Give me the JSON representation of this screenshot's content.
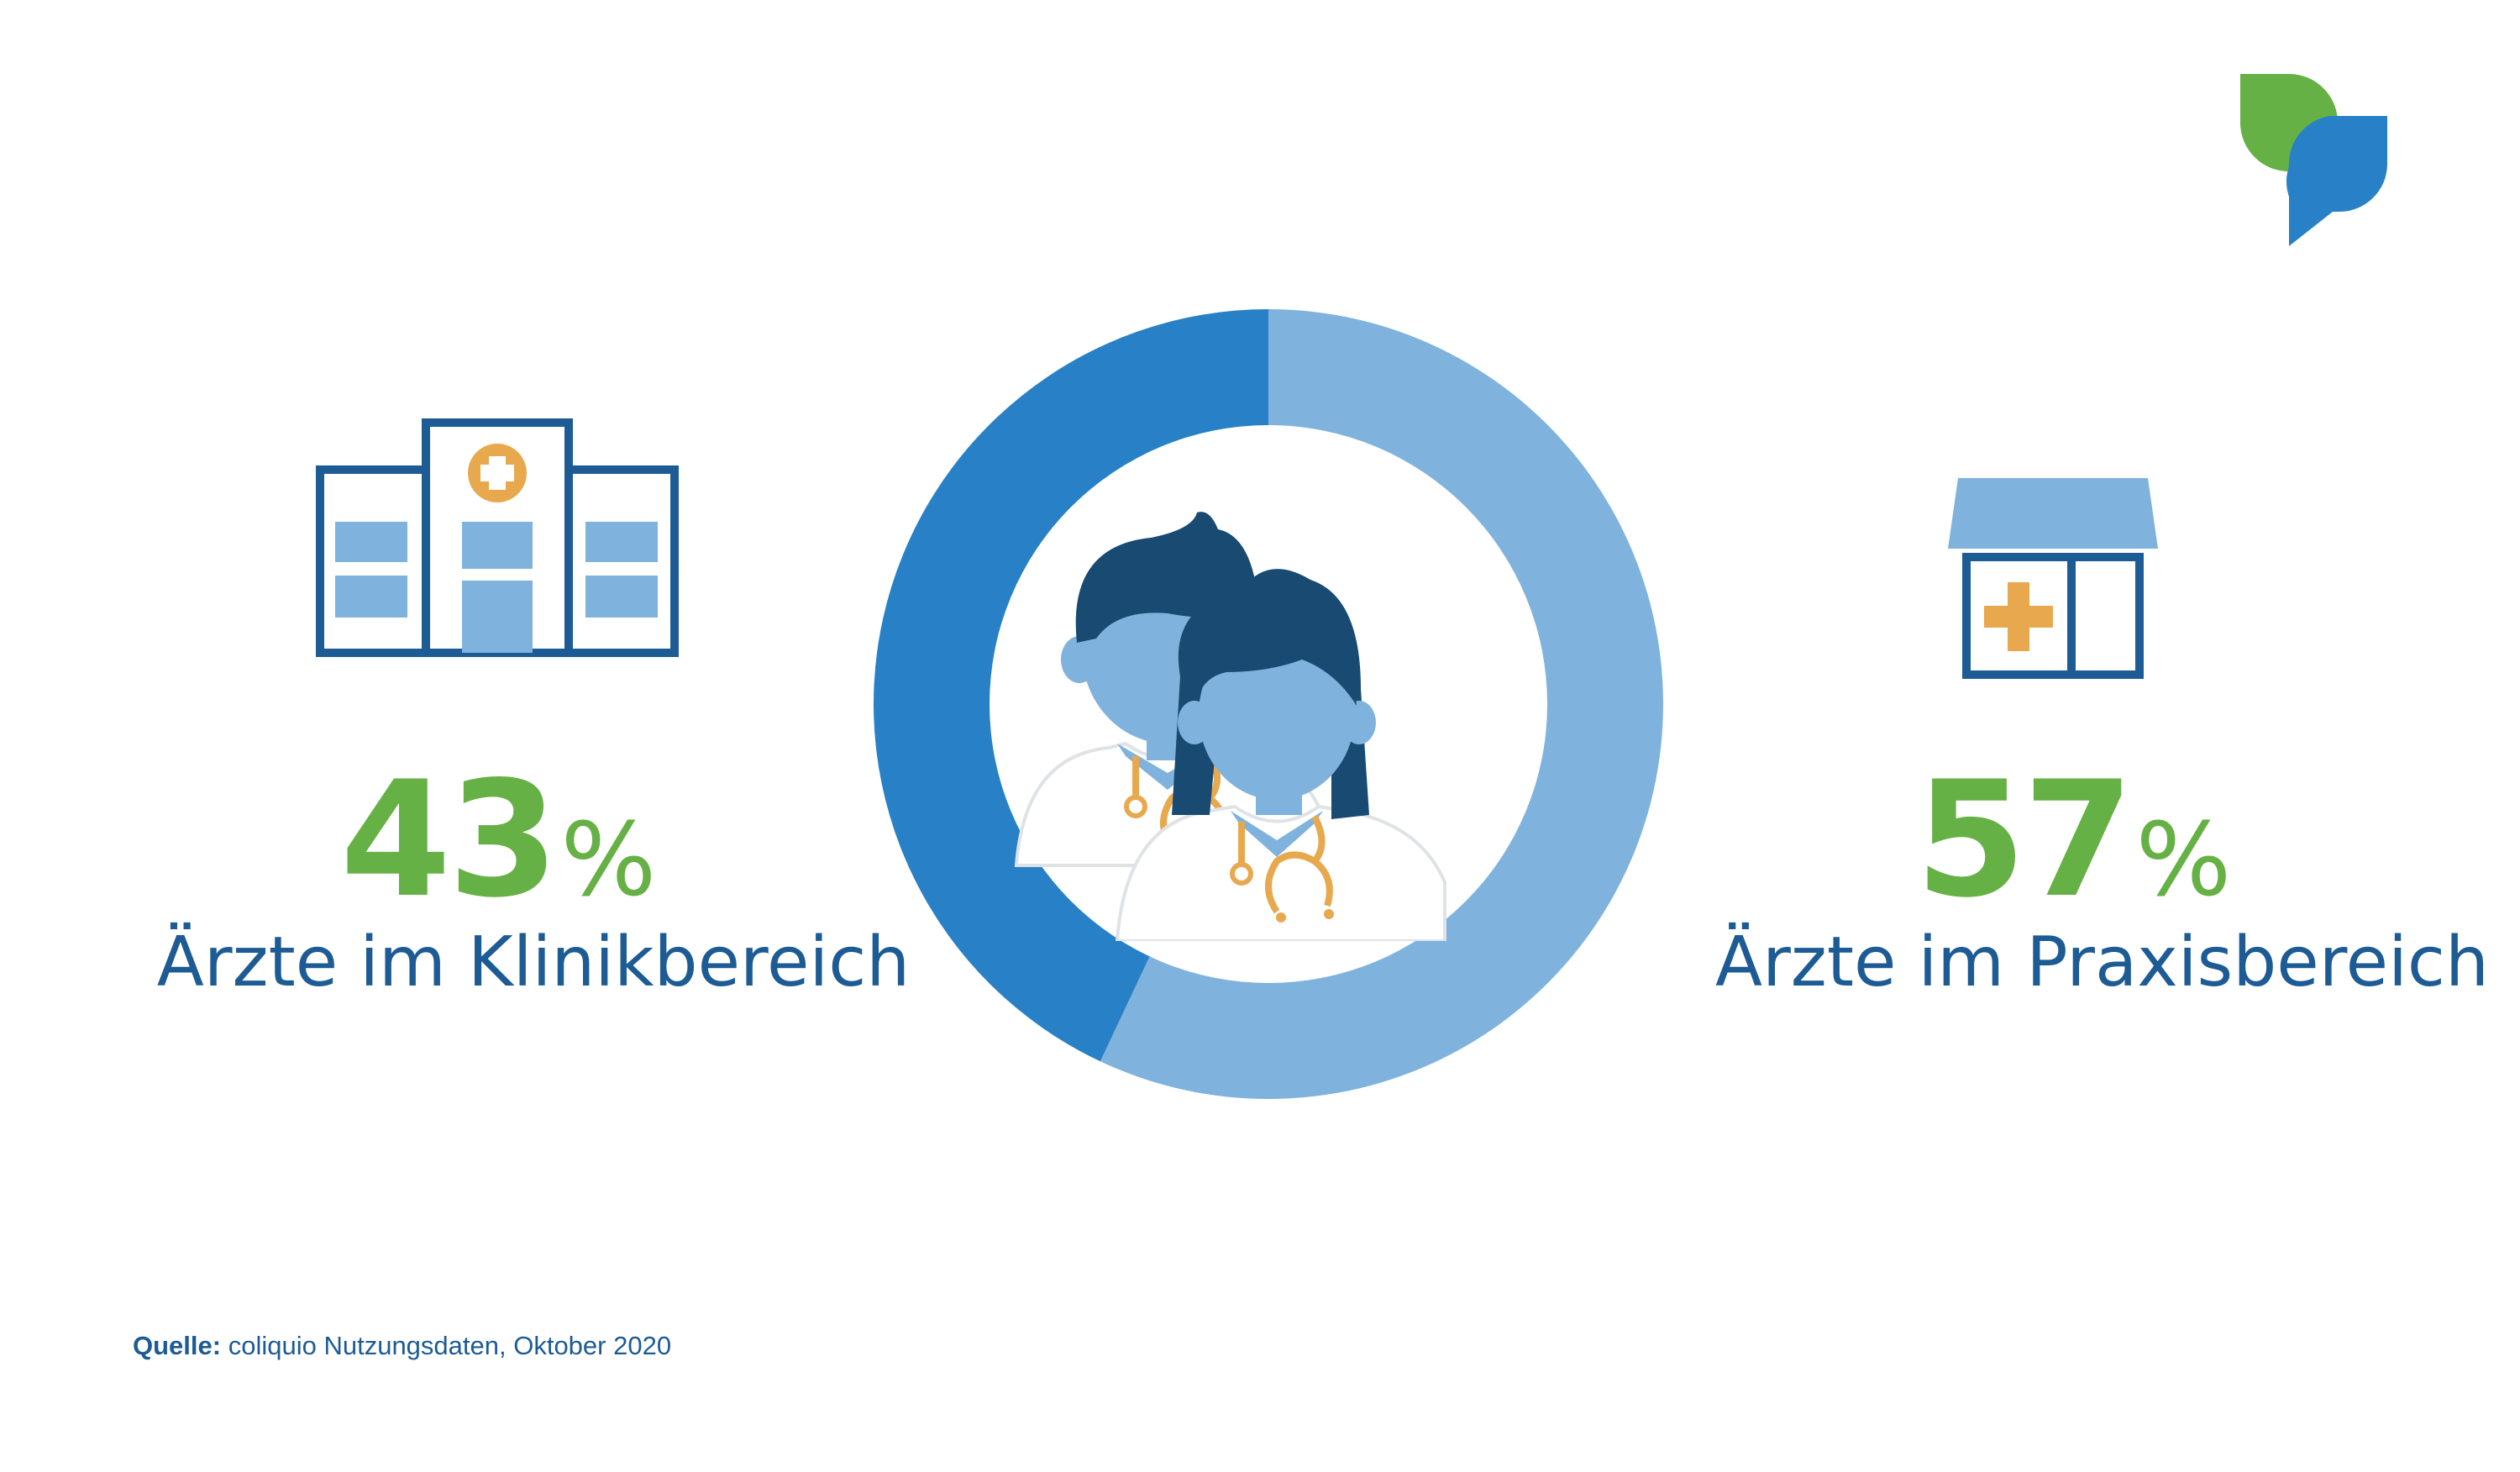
{
  "chart_data": {
    "type": "pie",
    "style": "donut",
    "categories": [
      "Ärzte im Klinikbereich",
      "Ärzte im Praxisbereich"
    ],
    "values": [
      43,
      57
    ],
    "value_labels": [
      "43",
      "57"
    ],
    "unit": "%",
    "colors": [
      "#2881c7",
      "#7fb3de"
    ]
  },
  "source": {
    "label": "Quelle:",
    "text": "coliquio Nutzungsdaten, Oktober 2020"
  },
  "icons": {
    "logo": "coliquio-speech-bubbles-logo",
    "left": "hospital-building-icon",
    "right": "medical-practice-icon",
    "center": "two-doctors-with-stethoscopes-icon"
  },
  "colors": {
    "green": "#66b145",
    "dark_blue": "#1d5b94",
    "navy": "#184a72",
    "light_blue": "#7fb3de",
    "mid_blue": "#2881c7",
    "orange": "#e8a94e"
  }
}
